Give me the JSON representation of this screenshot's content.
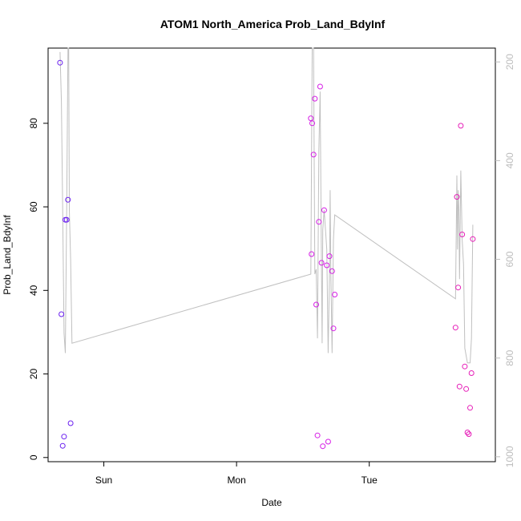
{
  "chart_data": {
    "type": "scatter",
    "title": "ATOM1 North_America Prob_Land_BdyInf",
    "xlabel": "Date",
    "ylabel": "Prob_Land_BdyInf",
    "x_ticks": [
      {
        "label": "Sun",
        "value": 1.0
      },
      {
        "label": "Mon",
        "value": 2.0
      },
      {
        "label": "Tue",
        "value": 3.0
      }
    ],
    "xlim": [
      0.58,
      3.95
    ],
    "ylim": [
      -1,
      98
    ],
    "y_ticks": [
      0,
      20,
      40,
      60,
      80
    ],
    "y2": {
      "ticks": [
        200,
        400,
        600,
        800,
        1000
      ],
      "lim": [
        1010,
        172
      ],
      "color": "#bdbdbd"
    },
    "grid": false,
    "legend": "none",
    "points": [
      {
        "x": 0.67,
        "y": 94.5,
        "color": "#6a1ff0"
      },
      {
        "x": 0.68,
        "y": 34.3,
        "color": "#6a1ff0"
      },
      {
        "x": 0.69,
        "y": 2.8,
        "color": "#6a1ff0"
      },
      {
        "x": 0.7,
        "y": 5.0,
        "color": "#6a1ff0"
      },
      {
        "x": 0.71,
        "y": 56.9,
        "color": "#6a1ff0"
      },
      {
        "x": 0.72,
        "y": 56.9,
        "color": "#6a1ff0"
      },
      {
        "x": 0.73,
        "y": 61.7,
        "color": "#6a1ff0"
      },
      {
        "x": 0.75,
        "y": 8.2,
        "color": "#6a1ff0"
      },
      {
        "x": 2.56,
        "y": 81.2,
        "color": "#d61ee6"
      },
      {
        "x": 2.565,
        "y": 48.7,
        "color": "#d61ee6"
      },
      {
        "x": 2.57,
        "y": 80.0,
        "color": "#d61ee6"
      },
      {
        "x": 2.58,
        "y": 72.5,
        "color": "#d61ee6"
      },
      {
        "x": 2.59,
        "y": 85.9,
        "color": "#d61ee6"
      },
      {
        "x": 2.6,
        "y": 36.6,
        "color": "#d61ee6"
      },
      {
        "x": 2.61,
        "y": 5.3,
        "color": "#d61ee6"
      },
      {
        "x": 2.62,
        "y": 56.4,
        "color": "#d61ee6"
      },
      {
        "x": 2.63,
        "y": 88.8,
        "color": "#d61ee6"
      },
      {
        "x": 2.64,
        "y": 46.6,
        "color": "#d61ee6"
      },
      {
        "x": 2.65,
        "y": 2.7,
        "color": "#d61ee6"
      },
      {
        "x": 2.66,
        "y": 59.2,
        "color": "#d61ee6"
      },
      {
        "x": 2.68,
        "y": 46.0,
        "color": "#d61ee6"
      },
      {
        "x": 2.69,
        "y": 3.8,
        "color": "#d61ee6"
      },
      {
        "x": 2.7,
        "y": 48.2,
        "color": "#d61ee6"
      },
      {
        "x": 2.72,
        "y": 44.6,
        "color": "#d61ee6"
      },
      {
        "x": 2.73,
        "y": 30.9,
        "color": "#d61ee6"
      },
      {
        "x": 2.74,
        "y": 39.0,
        "color": "#d61ee6"
      },
      {
        "x": 3.65,
        "y": 31.1,
        "color": "#e61eb8"
      },
      {
        "x": 3.66,
        "y": 62.4,
        "color": "#e61eb8"
      },
      {
        "x": 3.67,
        "y": 40.7,
        "color": "#e61eb8"
      },
      {
        "x": 3.68,
        "y": 17.0,
        "color": "#e61eb8"
      },
      {
        "x": 3.69,
        "y": 79.4,
        "color": "#e61eb8"
      },
      {
        "x": 3.7,
        "y": 53.4,
        "color": "#e61eb8"
      },
      {
        "x": 3.72,
        "y": 21.8,
        "color": "#e61eb8"
      },
      {
        "x": 3.73,
        "y": 16.4,
        "color": "#e61eb8"
      },
      {
        "x": 3.74,
        "y": 6.0,
        "color": "#e61eb8"
      },
      {
        "x": 3.75,
        "y": 5.6,
        "color": "#e61eb8"
      },
      {
        "x": 3.76,
        "y": 11.9,
        "color": "#e61eb8"
      },
      {
        "x": 3.77,
        "y": 20.2,
        "color": "#e61eb8"
      },
      {
        "x": 3.78,
        "y": 52.3,
        "color": "#e61eb8"
      }
    ],
    "line": {
      "color": "#c0c0c0",
      "axis": "y2",
      "points": [
        [
          0.67,
          180
        ],
        [
          0.68,
          280
        ],
        [
          0.69,
          500
        ],
        [
          0.7,
          750
        ],
        [
          0.71,
          790
        ],
        [
          0.72,
          500
        ],
        [
          0.73,
          172
        ],
        [
          0.735,
          172
        ],
        [
          0.74,
          500
        ],
        [
          0.75,
          600
        ],
        [
          0.76,
          770
        ],
        [
          2.56,
          630
        ],
        [
          2.57,
          172
        ],
        [
          2.58,
          172
        ],
        [
          2.59,
          630
        ],
        [
          2.6,
          620
        ],
        [
          2.61,
          760
        ],
        [
          2.62,
          380
        ],
        [
          2.63,
          260
        ],
        [
          2.64,
          620
        ],
        [
          2.645,
          770
        ],
        [
          2.65,
          540
        ],
        [
          2.66,
          500
        ],
        [
          2.67,
          540
        ],
        [
          2.68,
          580
        ],
        [
          2.69,
          790
        ],
        [
          2.7,
          640
        ],
        [
          2.705,
          460
        ],
        [
          2.71,
          620
        ],
        [
          2.72,
          790
        ],
        [
          2.73,
          560
        ],
        [
          2.74,
          510
        ],
        [
          3.65,
          680
        ],
        [
          3.66,
          430
        ],
        [
          3.665,
          580
        ],
        [
          3.67,
          460
        ],
        [
          3.675,
          500
        ],
        [
          3.68,
          640
        ],
        [
          3.69,
          420
        ],
        [
          3.7,
          560
        ],
        [
          3.71,
          610
        ],
        [
          3.72,
          780
        ],
        [
          3.74,
          810
        ],
        [
          3.76,
          810
        ],
        [
          3.77,
          760
        ],
        [
          3.78,
          530
        ]
      ]
    }
  }
}
